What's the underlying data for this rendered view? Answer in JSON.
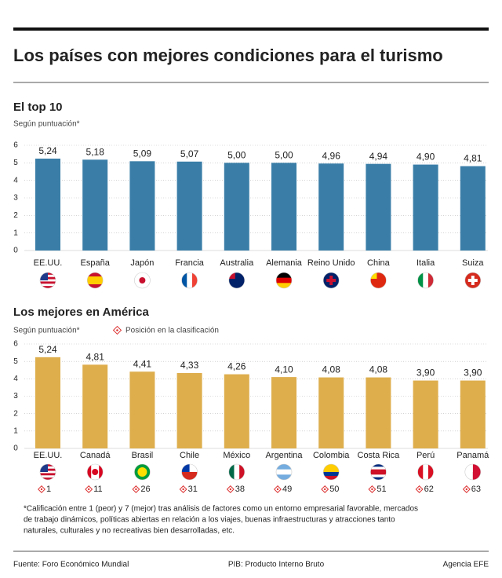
{
  "title": "Los países con mejores condiciones para el turismo",
  "chart_data": [
    {
      "type": "bar",
      "title": "El top 10",
      "subtitle": "Según puntuación*",
      "categories": [
        "EE.UU.",
        "España",
        "Japón",
        "Francia",
        "Australia",
        "Alemania",
        "Reino Unido",
        "China",
        "Italia",
        "Suiza"
      ],
      "values": [
        5.24,
        5.18,
        5.09,
        5.07,
        5.0,
        5.0,
        4.96,
        4.94,
        4.9,
        4.81
      ],
      "value_labels": [
        "5,24",
        "5,18",
        "5,09",
        "5,07",
        "5,00",
        "5,00",
        "4,96",
        "4,94",
        "4,90",
        "4,81"
      ],
      "color": "#3a7ea8",
      "ylim": [
        0,
        6
      ],
      "yticks": [
        0,
        1,
        2,
        3,
        4,
        5,
        6
      ],
      "grid": true
    },
    {
      "type": "bar",
      "title": "Los mejores en América",
      "subtitle": "Según puntuación*",
      "legend": "Posición en la clasificación",
      "categories": [
        "EE.UU.",
        "Canadá",
        "Brasil",
        "Chile",
        "México",
        "Argentina",
        "Colombia",
        "Costa Rica",
        "Perú",
        "Panamá"
      ],
      "values": [
        5.24,
        4.81,
        4.41,
        4.33,
        4.26,
        4.1,
        4.08,
        4.08,
        3.9,
        3.9
      ],
      "value_labels": [
        "5,24",
        "4,81",
        "4,41",
        "4,33",
        "4,26",
        "4,10",
        "4,08",
        "4,08",
        "3,90",
        "3,90"
      ],
      "ranks": [
        1,
        11,
        26,
        31,
        38,
        49,
        50,
        51,
        62,
        63
      ],
      "color": "#deae4d",
      "ylim": [
        0,
        6
      ],
      "yticks": [
        0,
        1,
        2,
        3,
        4,
        5,
        6
      ],
      "grid": true
    }
  ],
  "footnote": [
    "*Calificación entre 1 (peor) y 7 (mejor) tras análisis de factores como un entorno empresarial favorable, mercados",
    "de trabajo dinámicos, políticas abiertas en relación a los viajes, buenas infraestructuras y atracciones tanto",
    "naturales, culturales y no recreativas bien desarrolladas, etc."
  ],
  "source": "Fuente: Foro Económico Mundial",
  "note": "PIB: Producto Interno Bruto",
  "credit": "Agencia EFE"
}
